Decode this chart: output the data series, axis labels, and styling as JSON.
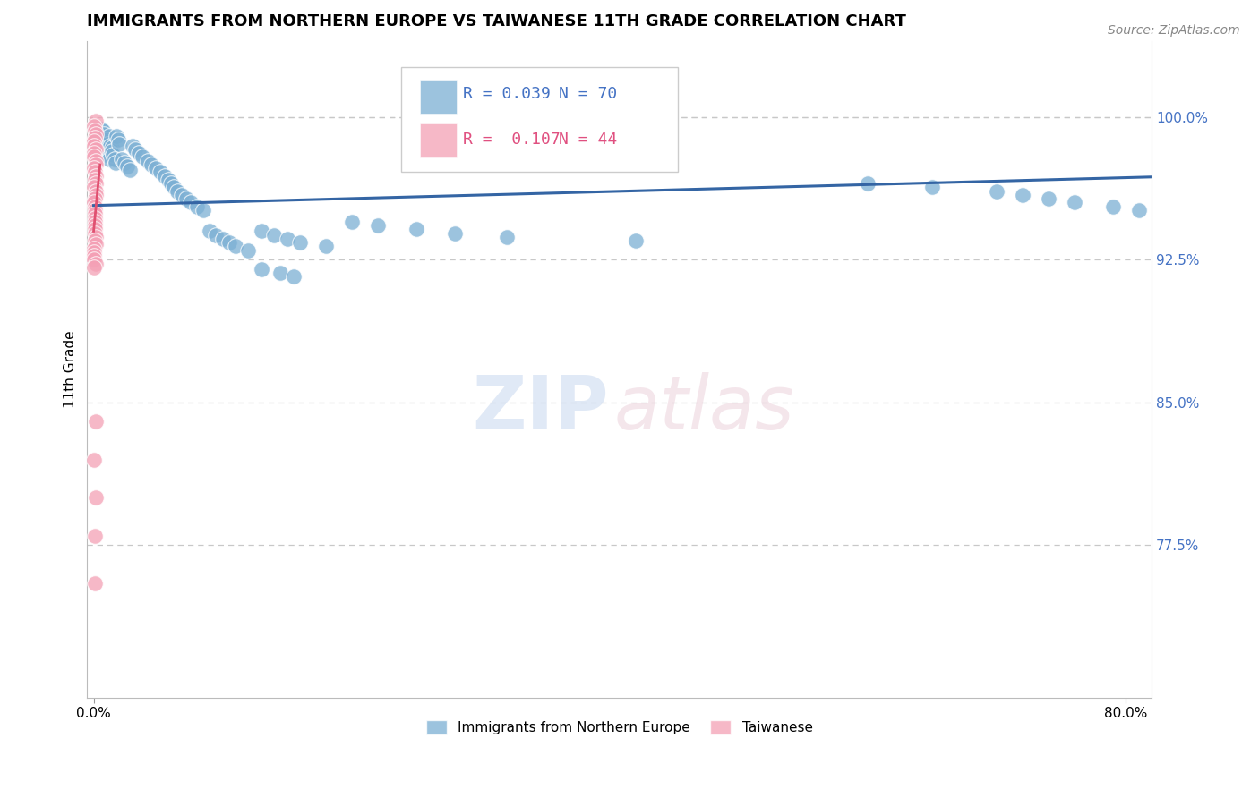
{
  "title": "IMMIGRANTS FROM NORTHERN EUROPE VS TAIWANESE 11TH GRADE CORRELATION CHART",
  "source": "Source: ZipAtlas.com",
  "ylabel": "11th Grade",
  "legend_blue_label": "Immigrants from Northern Europe",
  "legend_pink_label": "Taiwanese",
  "blue_R": 0.039,
  "blue_N": 70,
  "pink_R": 0.107,
  "pink_N": 44,
  "blue_color": "#7bafd4",
  "pink_color": "#f4a0b5",
  "trend_blue_color": "#3465a4",
  "trend_pink_color": "#e05070",
  "tick_color": "#4472c4",
  "xlim": [
    0.0,
    0.82
  ],
  "ylim": [
    0.695,
    1.04
  ],
  "yticks": [
    0.775,
    0.85,
    0.925,
    1.0
  ],
  "ytick_labels": [
    "77.5%",
    "85.0%",
    "92.5%",
    "100.0%"
  ],
  "blue_trend_x": [
    0.0,
    0.82
  ],
  "blue_trend_y": [
    0.9535,
    0.9685
  ],
  "pink_trend_x": [
    0.0,
    0.005
  ],
  "pink_trend_y": [
    0.94,
    0.975
  ],
  "blue_x": [
    0.005,
    0.006,
    0.007,
    0.008,
    0.008,
    0.009,
    0.01,
    0.01,
    0.011,
    0.012,
    0.012,
    0.013,
    0.014,
    0.014,
    0.015,
    0.016,
    0.017,
    0.018,
    0.019,
    0.02,
    0.022,
    0.024,
    0.026,
    0.028,
    0.03,
    0.032,
    0.035,
    0.038,
    0.042,
    0.045,
    0.048,
    0.052,
    0.055,
    0.058,
    0.06,
    0.062,
    0.065,
    0.068,
    0.072,
    0.075,
    0.08,
    0.085,
    0.09,
    0.095,
    0.1,
    0.105,
    0.11,
    0.12,
    0.13,
    0.14,
    0.15,
    0.16,
    0.18,
    0.2,
    0.22,
    0.25,
    0.28,
    0.32,
    0.42,
    0.6,
    0.65,
    0.7,
    0.72,
    0.74,
    0.76,
    0.79,
    0.81,
    0.13,
    0.145,
    0.155
  ],
  "blue_y": [
    0.99,
    0.994,
    0.993,
    0.991,
    0.985,
    0.983,
    0.988,
    0.98,
    0.986,
    0.978,
    0.99,
    0.985,
    0.984,
    0.982,
    0.98,
    0.978,
    0.976,
    0.99,
    0.988,
    0.986,
    0.978,
    0.976,
    0.974,
    0.972,
    0.985,
    0.983,
    0.981,
    0.979,
    0.977,
    0.975,
    0.973,
    0.971,
    0.969,
    0.967,
    0.965,
    0.963,
    0.961,
    0.959,
    0.957,
    0.955,
    0.953,
    0.951,
    0.94,
    0.938,
    0.936,
    0.934,
    0.932,
    0.93,
    0.94,
    0.938,
    0.936,
    0.934,
    0.932,
    0.945,
    0.943,
    0.941,
    0.939,
    0.937,
    0.935,
    0.965,
    0.963,
    0.961,
    0.959,
    0.957,
    0.955,
    0.953,
    0.951,
    0.92,
    0.918,
    0.916
  ],
  "pink_x": [
    0.001,
    0.001,
    0.001,
    0.001,
    0.001,
    0.001,
    0.001,
    0.001,
    0.001,
    0.001,
    0.001,
    0.001,
    0.001,
    0.001,
    0.001,
    0.001,
    0.001,
    0.001,
    0.001,
    0.001,
    0.001,
    0.001,
    0.001,
    0.001,
    0.001,
    0.001,
    0.001,
    0.001,
    0.001,
    0.001,
    0.001,
    0.001,
    0.001,
    0.001,
    0.001,
    0.001,
    0.001,
    0.001,
    0.001,
    0.001,
    0.001,
    0.001,
    0.001,
    0.001
  ],
  "pink_y": [
    0.998,
    0.995,
    0.993,
    0.991,
    0.989,
    0.987,
    0.985,
    0.983,
    0.981,
    0.979,
    0.977,
    0.975,
    0.973,
    0.971,
    0.969,
    0.967,
    0.965,
    0.963,
    0.961,
    0.959,
    0.957,
    0.955,
    0.953,
    0.951,
    0.949,
    0.947,
    0.945,
    0.943,
    0.941,
    0.939,
    0.937,
    0.935,
    0.933,
    0.931,
    0.929,
    0.927,
    0.925,
    0.923,
    0.921,
    0.755,
    0.78,
    0.8,
    0.82,
    0.84
  ]
}
